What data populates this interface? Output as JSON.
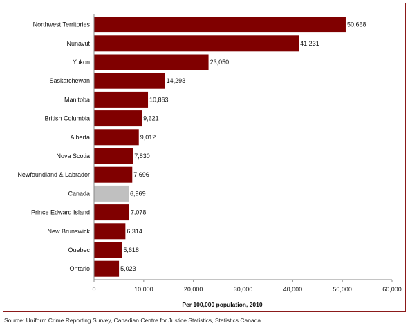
{
  "chart_data": {
    "type": "bar",
    "orientation": "horizontal",
    "categories": [
      "Northwest Territories",
      "Nunavut",
      "Yukon",
      "Saskatchewan",
      "Manitoba",
      "British Columbia",
      "Alberta",
      "Nova Scotia",
      "Newfoundland & Labrador",
      "Canada",
      "Prince Edward Island",
      "New Brunswick",
      "Quebec",
      "Ontario"
    ],
    "values": [
      50668,
      41231,
      23050,
      14293,
      10863,
      9621,
      9012,
      7830,
      7696,
      6969,
      7078,
      6314,
      5618,
      5023
    ],
    "value_labels": [
      "50,668",
      "41,231",
      "23,050",
      "14,293",
      "10,863",
      "9,621",
      "9,012",
      "7,830",
      "7,696",
      "6,969",
      "7,078",
      "6,314",
      "5,618",
      "5,023"
    ],
    "highlight_category": "Canada",
    "xlabel": "Per 100,000 population, 2010",
    "ylabel": "",
    "xlim": [
      0,
      60000
    ],
    "x_ticks": [
      0,
      10000,
      20000,
      30000,
      40000,
      50000,
      60000
    ],
    "x_tick_labels": [
      "0",
      "10,000",
      "20,000",
      "30,000",
      "40,000",
      "50,000",
      "60,000"
    ],
    "grid": false,
    "colors": {
      "bar": "#800000",
      "highlight": "#c0c0c0",
      "frame": "#8b1a1a"
    }
  },
  "source_note": "Source:  Uniform Crime Reporting Survey, Canadian Centre for Justice Statistics, Statistics Canada."
}
